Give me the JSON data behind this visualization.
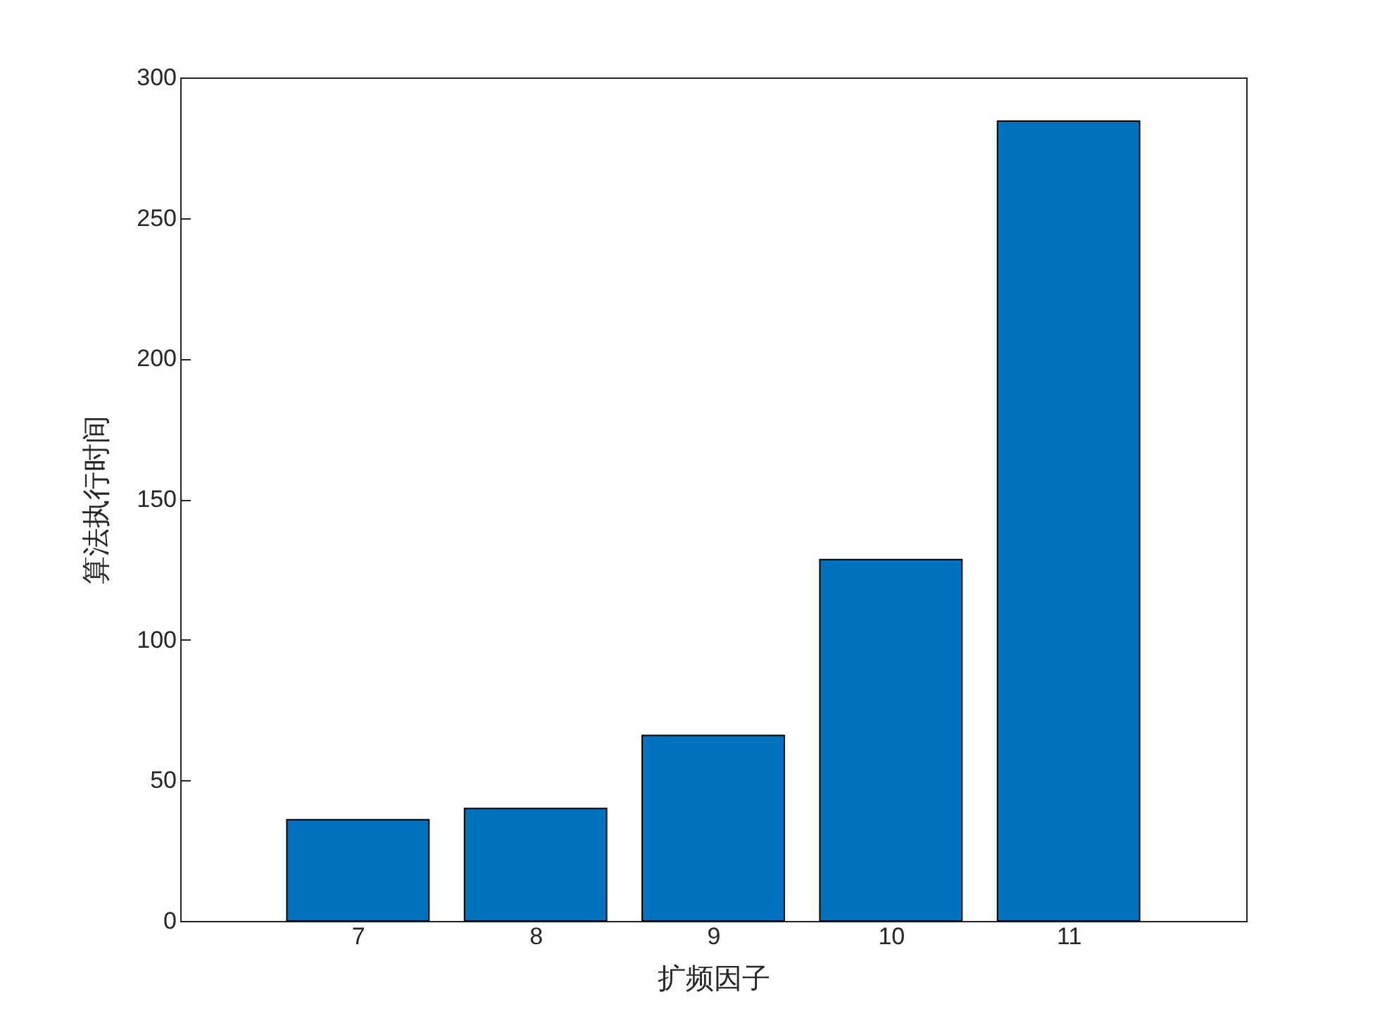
{
  "chart_data": {
    "type": "bar",
    "xlabel": "扩频因子",
    "ylabel": "算法执行时间",
    "x": [
      7,
      8,
      9,
      10,
      11
    ],
    "values": [
      36,
      40,
      66,
      128.5,
      284.5
    ],
    "color": "#0072bd",
    "xlim": [
      6,
      12
    ],
    "xticks": [
      7,
      8,
      9,
      10,
      11
    ],
    "ylim": [
      0,
      300
    ],
    "yticks": [
      0,
      50,
      100,
      150,
      200,
      250,
      300
    ],
    "grid": false
  }
}
